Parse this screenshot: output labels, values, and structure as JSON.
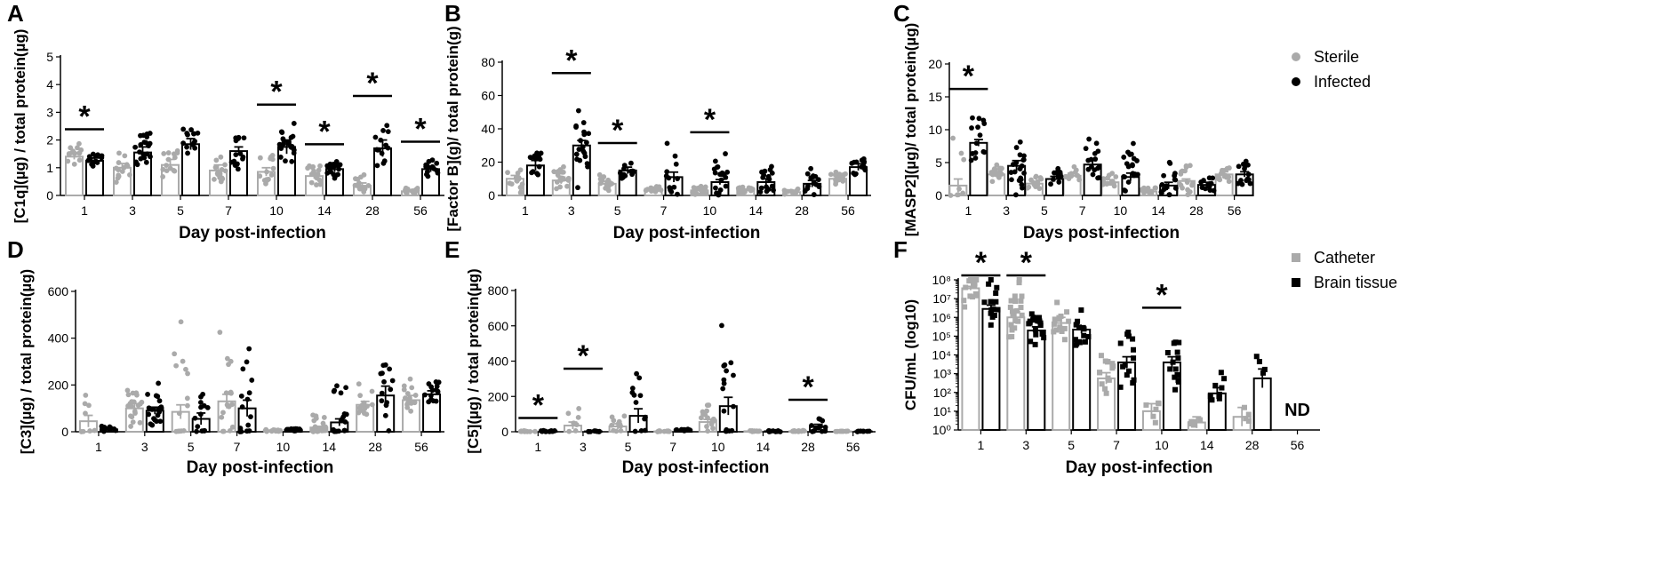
{
  "figure": {
    "legends": [
      {
        "panel": "C",
        "entries": [
          {
            "name": "Sterile",
            "color": "#aaaaaa",
            "marker": "circle"
          },
          {
            "name": "Infected",
            "color": "#000000",
            "marker": "circle"
          }
        ]
      },
      {
        "panel": "F",
        "entries": [
          {
            "name": "Catheter",
            "color": "#aaaaaa",
            "marker": "square"
          },
          {
            "name": "Brain tissue",
            "color": "#000000",
            "marker": "square"
          }
        ]
      }
    ]
  },
  "chart_data": [
    {
      "id": "A",
      "letter": "A",
      "type": "bar",
      "ylabel": "[C1q](µg) / total protein(µg)",
      "xlabel": "Day post-infection",
      "categories": [
        "1",
        "3",
        "5",
        "7",
        "10",
        "14",
        "28",
        "56"
      ],
      "yscale": "linear",
      "ylim": [
        0,
        5
      ],
      "yticks": [
        0,
        1,
        2,
        3,
        4,
        5
      ],
      "ytick_labels": [
        "0",
        "1",
        "2",
        "3",
        "4",
        "5"
      ],
      "marker": "circle",
      "series": [
        {
          "name": "Sterile",
          "color": "#aaaaaa",
          "values": [
            1.4,
            1.0,
            1.1,
            0.9,
            0.85,
            0.7,
            0.35,
            0.15
          ],
          "sem": [
            0.1,
            0.15,
            0.2,
            0.2,
            0.15,
            0.1,
            0.1,
            0.05
          ],
          "spread": [
            0.6,
            0.9,
            1.0,
            0.9,
            1.0,
            0.7,
            0.5,
            0.25
          ],
          "n": [
            14,
            14,
            14,
            14,
            14,
            16,
            14,
            12
          ]
        },
        {
          "name": "Infected",
          "color": "#000000",
          "values": [
            1.25,
            1.55,
            1.85,
            1.6,
            1.75,
            0.95,
            1.7,
            0.95
          ],
          "sem": [
            0.1,
            0.2,
            0.2,
            0.15,
            0.25,
            0.1,
            0.3,
            0.1
          ],
          "spread": [
            0.5,
            1.3,
            1.0,
            0.9,
            1.2,
            0.5,
            1.6,
            0.6
          ],
          "n": [
            14,
            20,
            14,
            14,
            20,
            20,
            14,
            14
          ]
        }
      ],
      "significance": [
        {
          "category": "1",
          "label": "*"
        },
        {
          "category": "10",
          "label": "*"
        },
        {
          "category": "14",
          "label": "*"
        },
        {
          "category": "28",
          "label": "*"
        },
        {
          "category": "56",
          "label": "*"
        }
      ]
    },
    {
      "id": "B",
      "letter": "B",
      "type": "bar",
      "ylabel": "[Factor B](g)/ total protein(g)",
      "xlabel": "Day post-infection",
      "categories": [
        "1",
        "3",
        "5",
        "7",
        "10",
        "14",
        "28",
        "56"
      ],
      "yscale": "linear",
      "ylim": [
        0,
        80
      ],
      "yticks": [
        0,
        20,
        40,
        60,
        80
      ],
      "ytick_labels": [
        "0",
        "20",
        "40",
        "60",
        "80"
      ],
      "marker": "circle",
      "series": [
        {
          "name": "Sterile",
          "color": "#aaaaaa",
          "values": [
            10,
            9,
            7,
            4,
            3,
            3,
            2,
            10
          ],
          "sem": [
            2,
            2,
            1.5,
            1,
            0.8,
            0.8,
            0.5,
            1.5
          ],
          "spread": [
            12,
            12,
            10,
            5,
            5,
            4,
            3,
            6
          ],
          "n": [
            14,
            20,
            14,
            10,
            20,
            16,
            12,
            14
          ]
        },
        {
          "name": "Infected",
          "color": "#000000",
          "values": [
            18,
            30,
            15,
            11,
            8,
            8,
            7,
            17
          ],
          "sem": [
            3,
            3,
            2,
            3,
            1.5,
            2,
            2,
            2
          ],
          "spread": [
            14,
            40,
            10,
            25,
            25,
            15,
            12,
            10
          ],
          "n": [
            14,
            20,
            14,
            12,
            20,
            16,
            14,
            14
          ]
        }
      ],
      "significance": [
        {
          "category": "3",
          "label": "*"
        },
        {
          "category": "5",
          "label": "*"
        },
        {
          "category": "10",
          "label": "*"
        }
      ]
    },
    {
      "id": "C",
      "letter": "C",
      "type": "bar",
      "ylabel": "[MASP2](µg)/ total protein(µg)",
      "xlabel": "Days post-infection",
      "categories": [
        "1",
        "3",
        "5",
        "7",
        "10",
        "14",
        "28",
        "56"
      ],
      "yscale": "linear",
      "ylim": [
        0,
        20
      ],
      "yticks": [
        0,
        5,
        10,
        15,
        20
      ],
      "ytick_labels": [
        "0",
        "5",
        "10",
        "15",
        "20"
      ],
      "marker": "circle",
      "series": [
        {
          "name": "Sterile",
          "color": "#aaaaaa",
          "values": [
            1.5,
            3.2,
            1.8,
            3.0,
            2.0,
            0.6,
            2.2,
            3.2
          ],
          "sem": [
            1,
            0.4,
            0.3,
            0.4,
            0.4,
            0.2,
            0.3,
            0.4
          ],
          "spread": [
            11,
            2.5,
            2,
            2,
            2,
            1,
            5,
            2
          ],
          "n": [
            8,
            16,
            14,
            14,
            14,
            12,
            16,
            14
          ]
        },
        {
          "name": "Infected",
          "color": "#000000",
          "values": [
            8.0,
            4.5,
            2.5,
            4.7,
            2.8,
            1.5,
            1.6,
            3.2
          ],
          "sem": [
            0.5,
            0.8,
            0.4,
            0.6,
            0.6,
            0.5,
            0.4,
            0.4
          ],
          "spread": [
            7,
            8,
            2,
            5,
            7,
            5,
            2,
            4
          ],
          "n": [
            14,
            20,
            14,
            16,
            20,
            16,
            12,
            14
          ]
        }
      ],
      "significance": [
        {
          "category": "1",
          "label": "*"
        }
      ]
    },
    {
      "id": "D",
      "letter": "D",
      "type": "bar",
      "ylabel": "[C3](µg) / total protein(µg)",
      "xlabel": "Day post-infection",
      "categories": [
        "1",
        "3",
        "5",
        "7",
        "10",
        "14",
        "28",
        "56"
      ],
      "yscale": "linear",
      "ylim": [
        0,
        600
      ],
      "yticks": [
        0,
        200,
        400,
        600
      ],
      "ytick_labels": [
        "0",
        "200",
        "400",
        "600"
      ],
      "marker": "circle",
      "series": [
        {
          "name": "Sterile",
          "color": "#aaaaaa",
          "values": [
            45,
            100,
            85,
            130,
            5,
            18,
            115,
            135
          ],
          "sem": [
            25,
            20,
            30,
            30,
            2,
            5,
            15,
            20
          ],
          "spread": [
            220,
            150,
            450,
            360,
            10,
            100,
            120,
            130
          ],
          "n": [
            8,
            20,
            14,
            16,
            14,
            20,
            14,
            16
          ]
        },
        {
          "name": "Infected",
          "color": "#000000",
          "values": [
            10,
            90,
            55,
            100,
            8,
            40,
            155,
            160
          ],
          "sem": [
            5,
            15,
            25,
            35,
            2,
            15,
            40,
            15
          ],
          "spread": [
            30,
            140,
            190,
            430,
            10,
            300,
            240,
            100
          ],
          "n": [
            12,
            20,
            14,
            16,
            14,
            20,
            14,
            16
          ]
        }
      ],
      "significance": []
    },
    {
      "id": "E",
      "letter": "E",
      "type": "bar",
      "ylabel": "[C5](µg) / total protein(µg)",
      "xlabel": "Day post-infection",
      "categories": [
        "1",
        "3",
        "5",
        "7",
        "10",
        "14",
        "28",
        "56"
      ],
      "yscale": "linear",
      "ylim": [
        0,
        800
      ],
      "yticks": [
        0,
        200,
        400,
        600,
        800
      ],
      "ytick_labels": [
        "0",
        "200",
        "400",
        "600",
        "800"
      ],
      "marker": "circle",
      "series": [
        {
          "name": "Sterile",
          "color": "#aaaaaa",
          "values": [
            3,
            35,
            30,
            2,
            55,
            3,
            3,
            2
          ],
          "sem": [
            1,
            20,
            15,
            1,
            15,
            1,
            1,
            1
          ],
          "spread": [
            5,
            280,
            130,
            5,
            200,
            5,
            5,
            3
          ],
          "n": [
            12,
            8,
            12,
            10,
            16,
            12,
            12,
            10
          ]
        },
        {
          "name": "Infected",
          "color": "#000000",
          "values": [
            3,
            2,
            90,
            10,
            145,
            3,
            30,
            2
          ],
          "sem": [
            1,
            1,
            40,
            2,
            50,
            1,
            12,
            1
          ],
          "spread": [
            5,
            5,
            450,
            10,
            560,
            5,
            90,
            3
          ],
          "n": [
            12,
            10,
            12,
            10,
            16,
            12,
            12,
            10
          ]
        }
      ],
      "significance": [
        {
          "category": "1",
          "label": "*"
        },
        {
          "category": "3",
          "label": "*"
        },
        {
          "category": "28",
          "label": "*"
        }
      ]
    },
    {
      "id": "F",
      "letter": "F",
      "type": "bar",
      "ylabel": "CFU/mL (log10)",
      "xlabel": "Day post-infection",
      "categories": [
        "1",
        "3",
        "5",
        "7",
        "10",
        "14",
        "28",
        "56"
      ],
      "yscale": "log10",
      "ylim": [
        0,
        8
      ],
      "yticks": [
        0,
        1,
        2,
        3,
        4,
        5,
        6,
        7,
        8
      ],
      "ytick_labels": [
        "10⁰",
        "10¹",
        "10²",
        "10³",
        "10⁴",
        "10⁵",
        "10⁶",
        "10⁷",
        "10⁸"
      ],
      "marker": "square",
      "series": [
        {
          "name": "Catheter",
          "color": "#aaaaaa",
          "values": [
            7.55,
            6.0,
            5.7,
            2.75,
            1.0,
            0.4,
            0.7,
            null
          ],
          "sem": [
            0.1,
            0.3,
            0.3,
            0.3,
            0.4,
            0.3,
            0.5,
            null
          ],
          "spread": [
            1.5,
            2.5,
            2,
            2.5,
            1.5,
            1,
            1,
            0
          ],
          "n": [
            14,
            20,
            14,
            14,
            6,
            6,
            4,
            0
          ]
        },
        {
          "name": "Brain tissue",
          "color": "#000000",
          "values": [
            6.45,
            5.3,
            5.35,
            3.6,
            3.6,
            1.95,
            2.75,
            null
          ],
          "sem": [
            0.2,
            0.2,
            0.2,
            0.3,
            0.3,
            0.3,
            0.5,
            null
          ],
          "spread": [
            2.5,
            2,
            2,
            3,
            2.5,
            1.5,
            2.3,
            0
          ],
          "n": [
            14,
            20,
            14,
            14,
            14,
            8,
            4,
            0
          ]
        }
      ],
      "significance": [
        {
          "category": "1",
          "label": "*"
        },
        {
          "category": "3",
          "label": "*"
        },
        {
          "category": "10",
          "label": "*"
        }
      ],
      "annotations": [
        {
          "category": "56",
          "text": "ND"
        }
      ]
    }
  ]
}
